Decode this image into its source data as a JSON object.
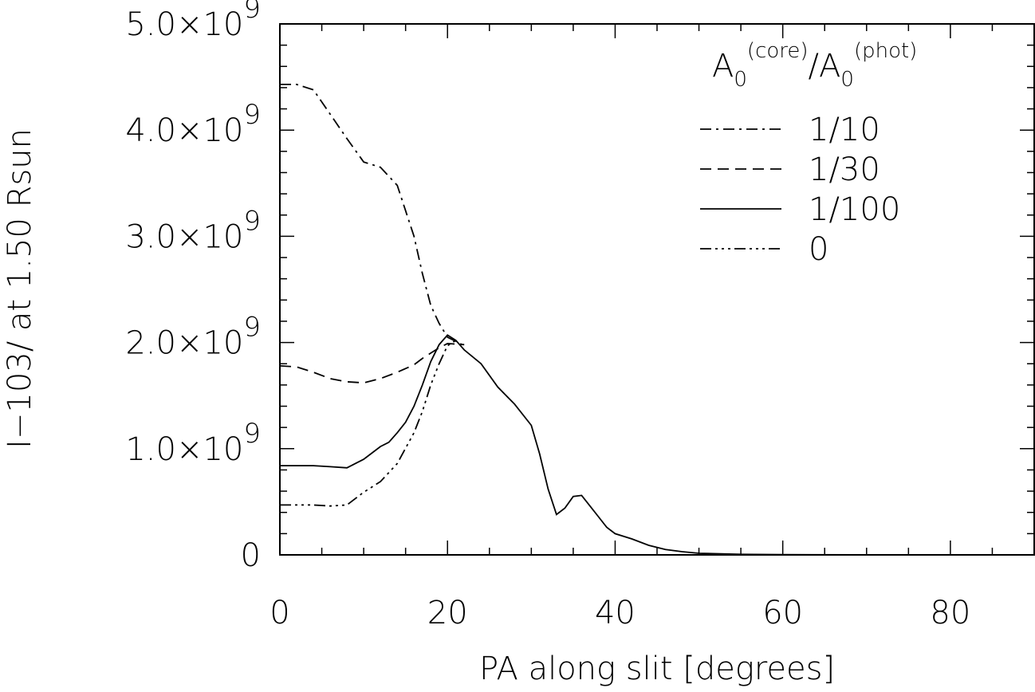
{
  "chart_data": {
    "type": "line",
    "xlabel": "PA along slit [degrees]",
    "ylabel": "I−103/ at 1.50 Rsun",
    "xlim": [
      0,
      90
    ],
    "ylim": [
      0,
      5000000000.0
    ],
    "x_ticks": [
      0,
      20,
      40,
      60,
      80
    ],
    "y_ticks": [
      {
        "value": 0,
        "base": "0",
        "exp": ""
      },
      {
        "value": 1000000000.0,
        "base": "1.0×10",
        "exp": "9"
      },
      {
        "value": 2000000000.0,
        "base": "2.0×10",
        "exp": "9"
      },
      {
        "value": 3000000000.0,
        "base": "3.0×10",
        "exp": "9"
      },
      {
        "value": 4000000000.0,
        "base": "4.0×10",
        "exp": "9"
      },
      {
        "value": 5000000000.0,
        "base": "5.0×10",
        "exp": "9"
      }
    ],
    "legend": {
      "title": {
        "a": "A",
        "sub": "0",
        "sup1": "(core)",
        "slash": "/",
        "sup2": "(phot)"
      },
      "placement": "top-right"
    },
    "series": [
      {
        "name": "1/10",
        "style": "dashdot",
        "points": [
          [
            0,
            4430000000.0
          ],
          [
            2,
            4430000000.0
          ],
          [
            4,
            4380000000.0
          ],
          [
            6,
            4150000000.0
          ],
          [
            8,
            3920000000.0
          ],
          [
            10,
            3700000000.0
          ],
          [
            12,
            3650000000.0
          ],
          [
            14,
            3480000000.0
          ],
          [
            16,
            3000000000.0
          ],
          [
            17,
            2650000000.0
          ],
          [
            18,
            2350000000.0
          ],
          [
            19,
            2180000000.0
          ],
          [
            20,
            2050000000.0
          ],
          [
            22,
            1970000000.0
          ]
        ]
      },
      {
        "name": "1/30",
        "style": "dashed",
        "points": [
          [
            0,
            1780000000.0
          ],
          [
            2,
            1770000000.0
          ],
          [
            4,
            1720000000.0
          ],
          [
            6,
            1660000000.0
          ],
          [
            8,
            1630000000.0
          ],
          [
            10,
            1620000000.0
          ],
          [
            12,
            1660000000.0
          ],
          [
            14,
            1720000000.0
          ],
          [
            16,
            1790000000.0
          ],
          [
            17,
            1850000000.0
          ],
          [
            18,
            1900000000.0
          ],
          [
            19,
            1950000000.0
          ],
          [
            20,
            1990000000.0
          ],
          [
            22,
            1980000000.0
          ]
        ]
      },
      {
        "name": "1/100",
        "style": "solid",
        "points": [
          [
            0,
            840000000.0
          ],
          [
            2,
            840000000.0
          ],
          [
            4,
            840000000.0
          ],
          [
            6,
            830000000.0
          ],
          [
            8,
            820000000.0
          ],
          [
            9,
            860000000.0
          ],
          [
            10,
            900000000.0
          ],
          [
            11,
            960000000.0
          ],
          [
            12,
            1020000000.0
          ],
          [
            13,
            1060000000.0
          ],
          [
            14,
            1150000000.0
          ],
          [
            15,
            1250000000.0
          ],
          [
            16,
            1400000000.0
          ],
          [
            17,
            1600000000.0
          ],
          [
            18,
            1820000000.0
          ],
          [
            19,
            1980000000.0
          ],
          [
            20,
            2070000000.0
          ],
          [
            21,
            2020000000.0
          ],
          [
            22,
            1930000000.0
          ],
          [
            24,
            1800000000.0
          ],
          [
            26,
            1580000000.0
          ],
          [
            28,
            1420000000.0
          ],
          [
            30,
            1220000000.0
          ],
          [
            31,
            950000000.0
          ],
          [
            32,
            620000000.0
          ],
          [
            33,
            380000000.0
          ],
          [
            34,
            440000000.0
          ],
          [
            35,
            550000000.0
          ],
          [
            36,
            560000000.0
          ],
          [
            37,
            460000000.0
          ],
          [
            38,
            360000000.0
          ],
          [
            39,
            260000000.0
          ],
          [
            40,
            200000000.0
          ],
          [
            42,
            150000000.0
          ],
          [
            44,
            90000000.0
          ],
          [
            46,
            50000000.0
          ],
          [
            48,
            30000000.0
          ],
          [
            50,
            15000000.0
          ],
          [
            55,
            5000000.0
          ],
          [
            60,
            2000000.0
          ],
          [
            70,
            500000.0
          ],
          [
            75,
            0.0
          ]
        ]
      },
      {
        "name": "0",
        "style": "dashdotdotdot",
        "points": [
          [
            0,
            470000000.0
          ],
          [
            2,
            470000000.0
          ],
          [
            4,
            470000000.0
          ],
          [
            6,
            460000000.0
          ],
          [
            8,
            470000000.0
          ],
          [
            10,
            590000000.0
          ],
          [
            12,
            690000000.0
          ],
          [
            14,
            860000000.0
          ],
          [
            16,
            1150000000.0
          ],
          [
            17,
            1350000000.0
          ],
          [
            18,
            1600000000.0
          ],
          [
            19,
            1800000000.0
          ],
          [
            20,
            1970000000.0
          ],
          [
            21,
            2020000000.0
          ]
        ]
      }
    ]
  }
}
